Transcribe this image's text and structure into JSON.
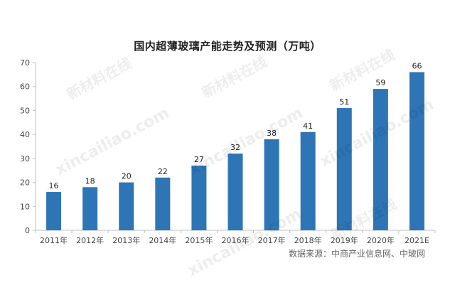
{
  "chart_data": {
    "type": "bar",
    "title": "国内超薄玻璃产能走势及预测（万吨）",
    "categories": [
      "2011年",
      "2012年",
      "2013年",
      "2014年",
      "2015年",
      "2016年",
      "2017年",
      "2018年",
      "2019年",
      "2020年",
      "2021E"
    ],
    "values": [
      16,
      18,
      20,
      22,
      27,
      32,
      38,
      41,
      51,
      59,
      66
    ],
    "value_labels": [
      "16",
      "18",
      "20",
      "22",
      "27",
      "32",
      "38",
      "41",
      "51",
      "59",
      "66"
    ],
    "yticks": [
      0,
      10,
      20,
      30,
      40,
      50,
      60,
      70
    ],
    "ylim": [
      0,
      70
    ],
    "bar_color": "#2e75b6",
    "grid": false,
    "legend": "none"
  },
  "source_note": "数据来源：中商产业信息网、中玻网",
  "watermarks": {
    "brand": "新材料在线",
    "site": "xincailiao.com"
  }
}
